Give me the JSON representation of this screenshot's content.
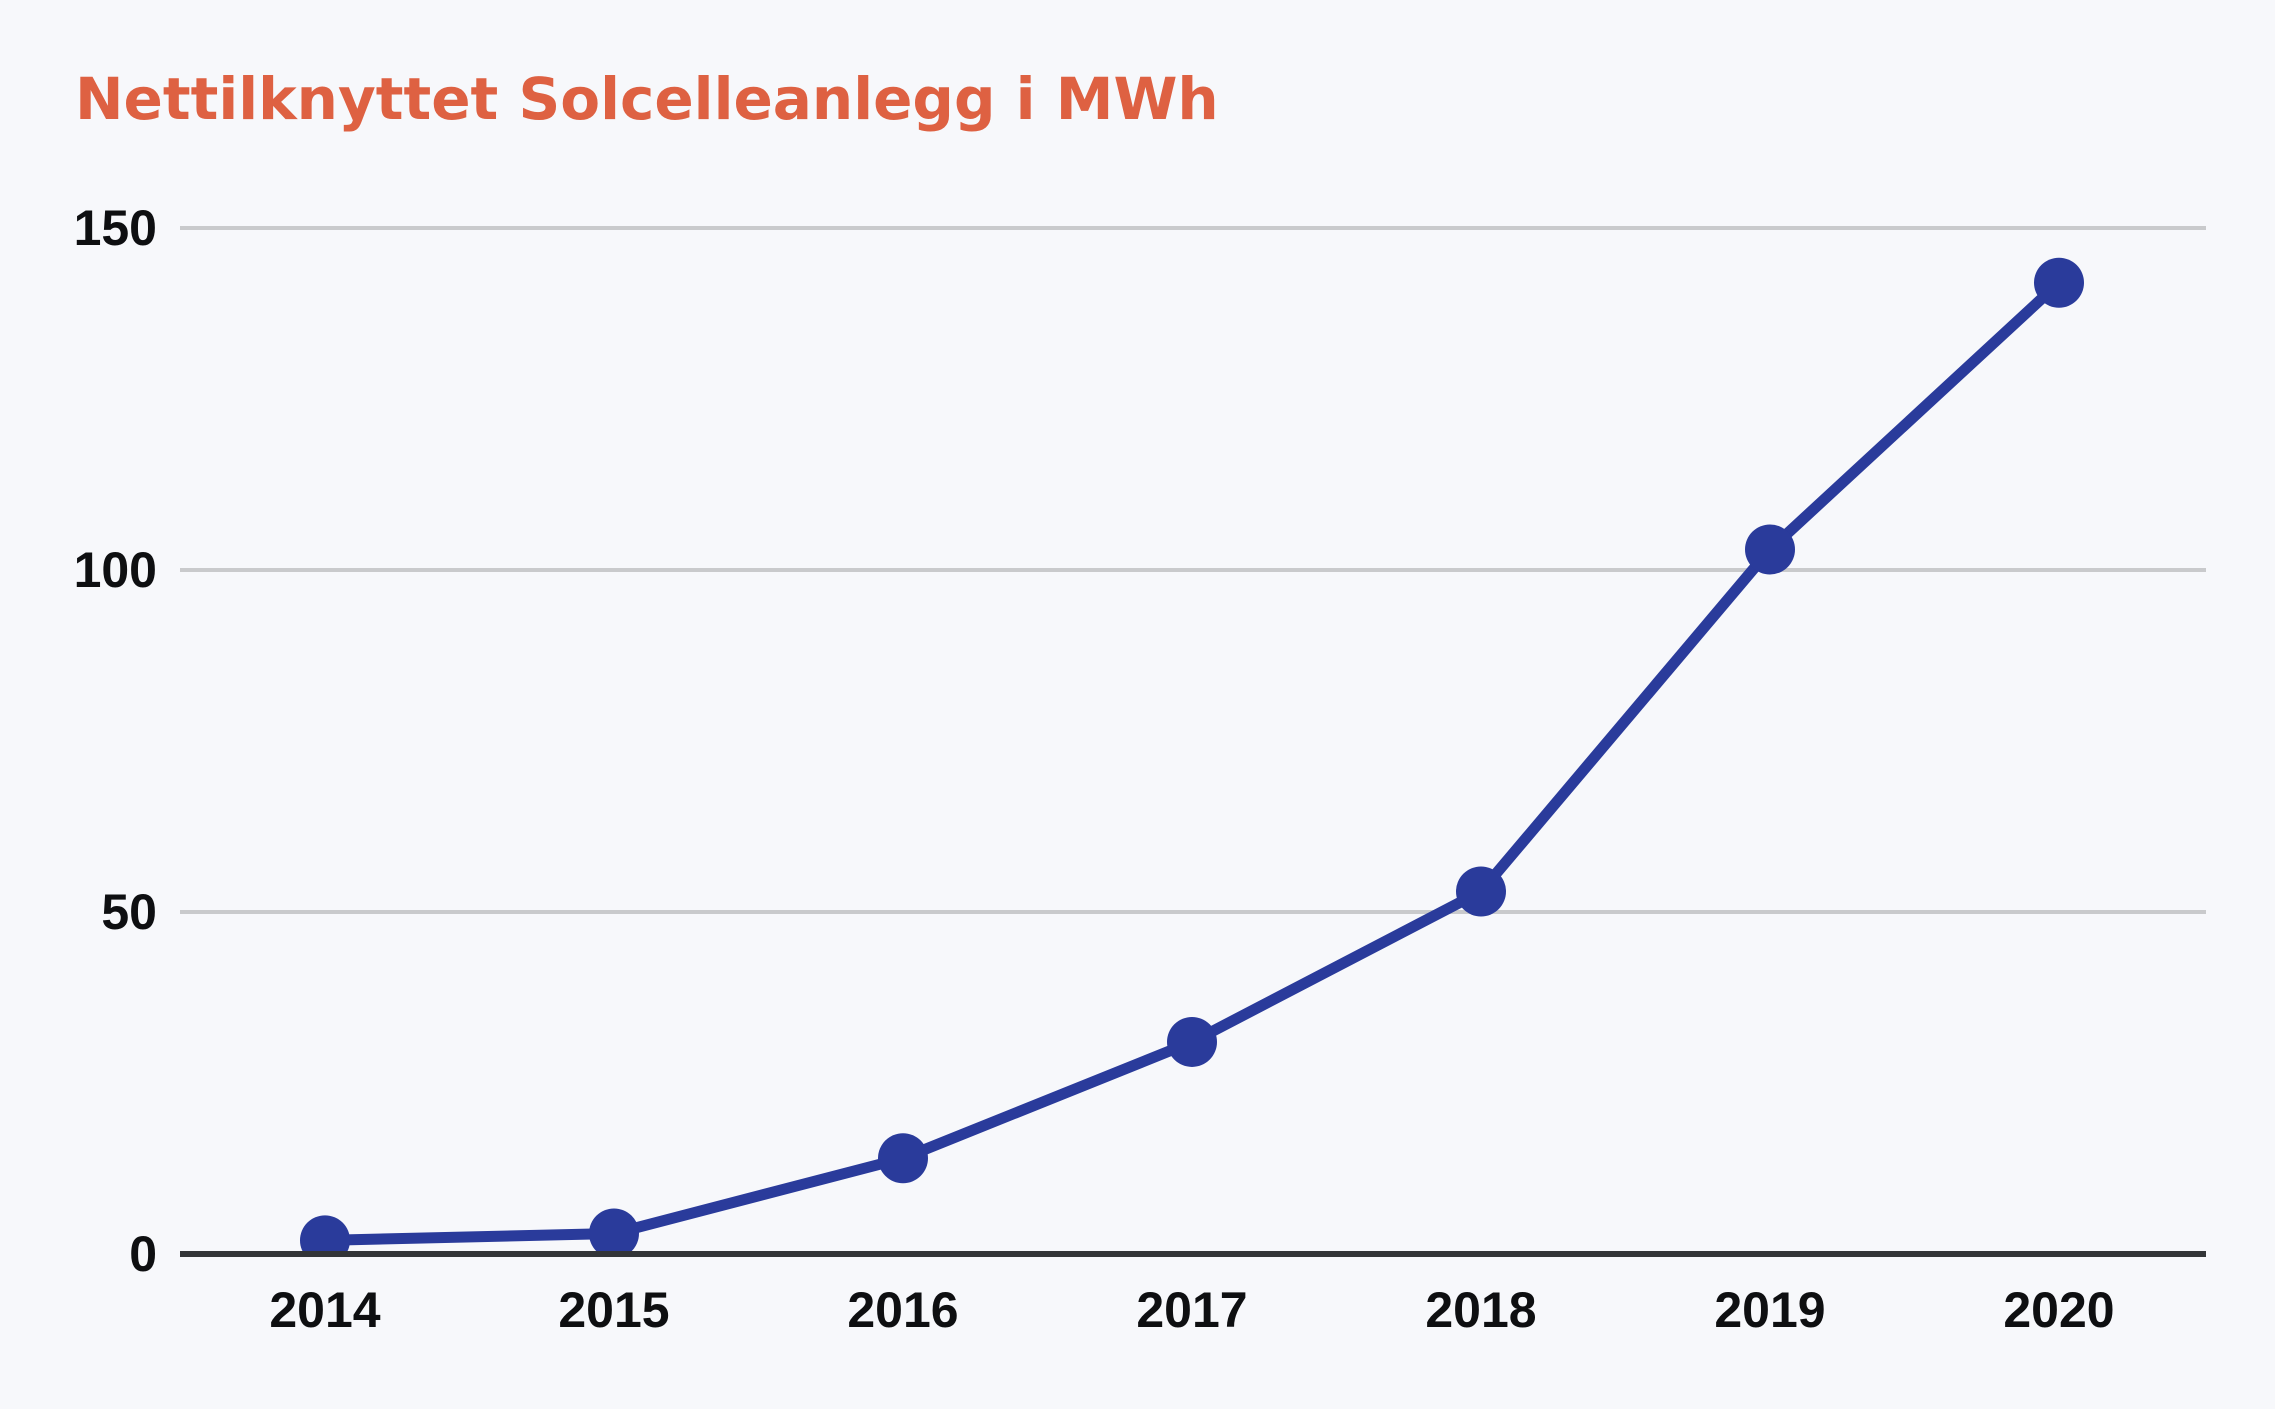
{
  "title": "Nettilknyttet Solcelleanlegg i MWh",
  "chart_data": {
    "type": "line",
    "title": "Nettilknyttet Solcelleanlegg i MWh",
    "categories": [
      "2014",
      "2015",
      "2016",
      "2017",
      "2018",
      "2019",
      "2020"
    ],
    "series": [
      {
        "name": "Nettilknyttet solcelleanlegg",
        "values": [
          2,
          3,
          14,
          31,
          53,
          103,
          142
        ]
      }
    ],
    "xlabel": "",
    "ylabel": "",
    "ylim": [
      0,
      150
    ],
    "yticks": [
      0,
      50,
      100,
      150
    ],
    "grid": true,
    "legend": "none",
    "colors": {
      "line": "#2A3B9B",
      "point": "#2A3B9B",
      "title": "#DE6142",
      "grid": "#C9CACC",
      "axis": "#333538",
      "tick_label": "#0E0F11",
      "background": "#F7F8FB"
    }
  }
}
